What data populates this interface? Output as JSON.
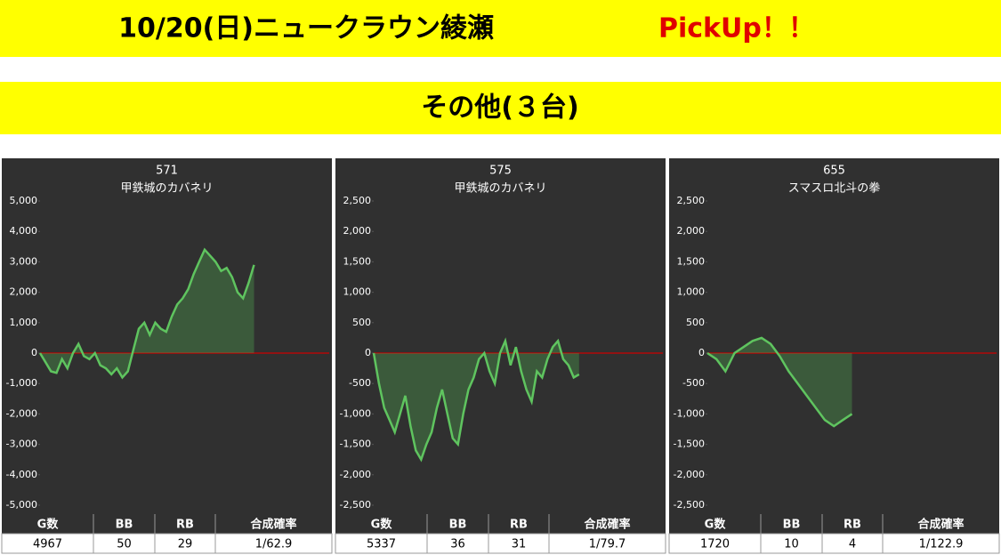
{
  "header": {
    "title": "10/20(日)ニュークラウン綾瀬",
    "highlight": "PickUp！！",
    "subtitle": "その他(３台)"
  },
  "chart_data": [
    {
      "type": "line",
      "title": "571",
      "subtitle": "甲鉄城のカバネリ",
      "color": "#5fc45f",
      "ylim": [
        -5000,
        5000
      ],
      "yticks": [
        {
          "value": -5000,
          "label": "-5,000"
        },
        {
          "value": -4000,
          "label": "-4,000"
        },
        {
          "value": -3000,
          "label": "-3,000"
        },
        {
          "value": -2000,
          "label": "-2,000"
        },
        {
          "value": -1000,
          "label": "-1,000"
        },
        0,
        {
          "value": 1000,
          "label": "1,000"
        },
        {
          "value": 2000,
          "label": "2,000"
        },
        {
          "value": 3000,
          "label": "3,000"
        },
        {
          "value": 4000,
          "label": "4,000"
        },
        {
          "value": 5000,
          "label": "5,000"
        }
      ],
      "values": [
        0,
        -300,
        -600,
        -650,
        -200,
        -500,
        0,
        300,
        -100,
        -200,
        0,
        -400,
        -500,
        -700,
        -500,
        -800,
        -600,
        100,
        800,
        1000,
        600,
        1000,
        800,
        700,
        1200,
        1600,
        1800,
        2100,
        2600,
        3000,
        3400,
        3200,
        3000,
        2700,
        2800,
        2500,
        2000,
        1800,
        2300,
        2900
      ],
      "table": {
        "header": [
          "G数",
          "BB",
          "RB",
          "合成確率"
        ],
        "row": [
          "4967",
          "50",
          "29",
          "1/62.9"
        ]
      }
    },
    {
      "type": "line",
      "title": "575",
      "subtitle": "甲鉄城のカバネリ",
      "color": "#5fc45f",
      "ylim": [
        -2500,
        2500
      ],
      "yticks": [
        {
          "value": -2500,
          "label": "-2,500"
        },
        {
          "value": -2000,
          "label": "-2,000"
        },
        {
          "value": -1500,
          "label": "-1,500"
        },
        {
          "value": -1000,
          "label": "-1,000"
        },
        -500,
        0,
        500,
        {
          "value": 1000,
          "label": "1,000"
        },
        {
          "value": 1500,
          "label": "1,500"
        },
        {
          "value": 2000,
          "label": "2,000"
        },
        {
          "value": 2500,
          "label": "2,500"
        }
      ],
      "values": [
        0,
        -500,
        -900,
        -1100,
        -1300,
        -1000,
        -700,
        -1200,
        -1600,
        -1750,
        -1500,
        -1300,
        -900,
        -600,
        -1000,
        -1400,
        -1500,
        -1000,
        -600,
        -400,
        -100,
        0,
        -300,
        -500,
        0,
        200,
        -200,
        100,
        -300,
        -600,
        -800,
        -300,
        -400,
        -100,
        100,
        200,
        -100,
        -200,
        -400,
        -350
      ],
      "table": {
        "header": [
          "G数",
          "BB",
          "RB",
          "合成確率"
        ],
        "row": [
          "5337",
          "36",
          "31",
          "1/79.7"
        ]
      }
    },
    {
      "type": "line",
      "title": "655",
      "subtitle": "スマスロ北斗の拳",
      "color": "#5fc45f",
      "ylim": [
        -2500,
        2500
      ],
      "yticks": [
        {
          "value": -2500,
          "label": "-2,500"
        },
        {
          "value": -2000,
          "label": "-2,000"
        },
        {
          "value": -1500,
          "label": "-1,500"
        },
        {
          "value": -1000,
          "label": "-1,000"
        },
        -500,
        0,
        500,
        {
          "value": 1000,
          "label": "1,000"
        },
        {
          "value": 1500,
          "label": "1,500"
        },
        {
          "value": 2000,
          "label": "2,000"
        },
        {
          "value": 2500,
          "label": "2,500"
        }
      ],
      "values": [
        0,
        -100,
        -300,
        0,
        100,
        200,
        250,
        150,
        -50,
        -300,
        -500,
        -700,
        -900,
        -1100,
        -1200,
        -1100,
        -1000
      ],
      "table": {
        "header": [
          "G数",
          "BB",
          "RB",
          "合成確率"
        ],
        "row": [
          "1720",
          "10",
          "4",
          "1/122.9"
        ]
      }
    }
  ]
}
